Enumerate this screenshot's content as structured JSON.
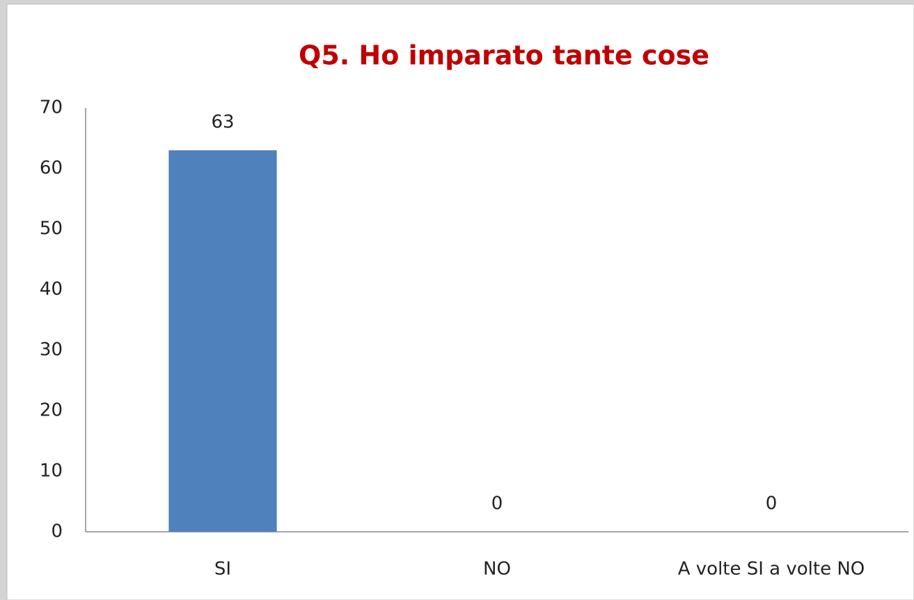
{
  "chart_data": {
    "type": "bar",
    "title": "Q5. Ho imparato tante cose",
    "categories": [
      "SI",
      "NO",
      "A volte SI a volte NO"
    ],
    "values": [
      63,
      0,
      0
    ],
    "color": "#4f81bd",
    "ylim": [
      0,
      70
    ],
    "yticks": [
      0,
      10,
      20,
      30,
      40,
      50,
      60,
      70
    ],
    "grid": false
  }
}
